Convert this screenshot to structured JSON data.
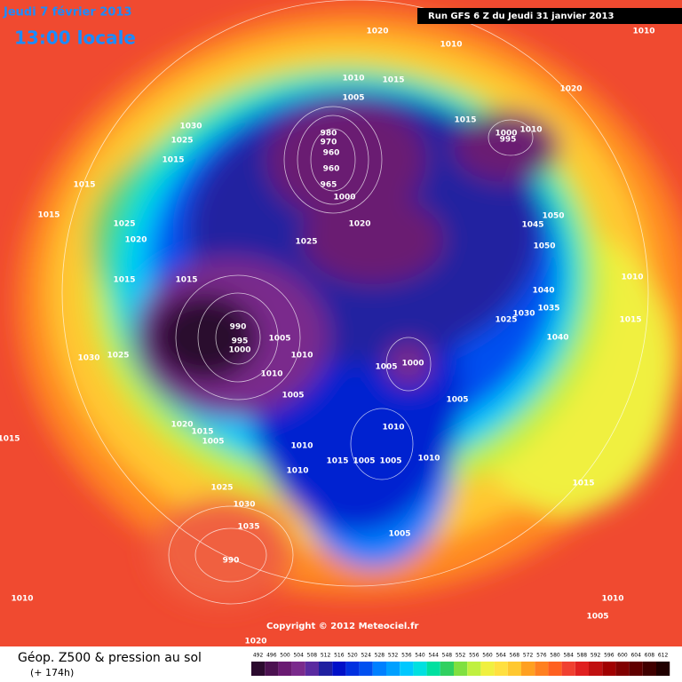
{
  "header": {
    "date": "Jeudi 7 février 2013",
    "time": "13:00 locale",
    "run": "Run GFS 6 Z du Jeudi 31 janvier 2013"
  },
  "copyright": "Copyright © 2012 Meteociel.fr",
  "footer": {
    "title": "Géop. Z500 & pression au sol",
    "lead": "(+ 174h)"
  },
  "legend": {
    "values": [
      492,
      496,
      500,
      504,
      508,
      512,
      516,
      520,
      524,
      528,
      532,
      536,
      540,
      544,
      548,
      552,
      556,
      560,
      564,
      568,
      572,
      576,
      580,
      584,
      588,
      592,
      596,
      600,
      604,
      608,
      612
    ],
    "colors": [
      "#2b0a2e",
      "#4b1150",
      "#6a1a72",
      "#7a2a8c",
      "#5a2aa0",
      "#2020a0",
      "#0010c8",
      "#0030e0",
      "#0050f0",
      "#0080ff",
      "#00a0ff",
      "#00c8ff",
      "#00e0e0",
      "#00e0a0",
      "#30d060",
      "#80e040",
      "#c0f040",
      "#f0f040",
      "#ffe040",
      "#ffc830",
      "#ffa020",
      "#ff8020",
      "#ff6020",
      "#f04030",
      "#e02020",
      "#c01010",
      "#a00000",
      "#800000",
      "#600000",
      "#400000",
      "#200000"
    ]
  },
  "isobars": [
    1020,
    1010,
    1010,
    1010,
    1015,
    1005,
    1020,
    1015,
    1030,
    1025,
    1015,
    1015,
    1015,
    1025,
    1020,
    1025,
    1020,
    1045,
    1050,
    1050,
    1015,
    1015,
    1040,
    1010,
    1035,
    1030,
    1025,
    1015,
    990,
    995,
    1000,
    1005,
    1010,
    1030,
    1025,
    1040,
    1005,
    1000,
    1010,
    1005,
    1005,
    1020,
    1015,
    1015,
    1010,
    1005,
    1010,
    1015,
    1005,
    1005,
    1010,
    1010,
    1015,
    1025,
    1030,
    1035,
    1005,
    990,
    1010,
    1010,
    1005,
    1020,
    980,
    970,
    960,
    960,
    965,
    1000,
    1000,
    1010,
    995
  ]
}
